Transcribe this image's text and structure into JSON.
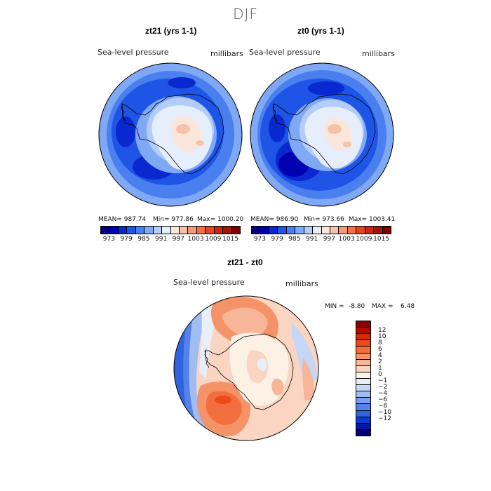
{
  "figure": {
    "title": "DJF"
  },
  "panels": [
    {
      "title": "zt21 (yrs 1-1)",
      "variable": "Sea-level pressure",
      "units": "millibars",
      "mean_label": "MEAN= 987.74",
      "min_label": "Min= 977.86",
      "max_label": "Max= 1000.20"
    },
    {
      "title": "zt0 (yrs 1-1)",
      "variable": "Sea-level pressure",
      "units": "millibars",
      "mean_label": "MEAN= 986.90",
      "min_label": "Min= 973.66",
      "max_label": "Max= 1003.41"
    }
  ],
  "colorbar_top": {
    "colors": [
      "#000080",
      "#0000b3",
      "#0a28d0",
      "#1e55e6",
      "#4a7ff0",
      "#7fa8f5",
      "#b4cdf8",
      "#e6eefb",
      "#fbe6dc",
      "#f7c3a8",
      "#f49a77",
      "#f07048",
      "#e4461f",
      "#c42a10",
      "#a01506",
      "#7a0000"
    ],
    "ticks": [
      "973",
      "979",
      "985",
      "991",
      "997",
      "1003",
      "1009",
      "1015"
    ]
  },
  "diff_panel": {
    "title": "zt21 - zt0",
    "variable": "Sea-level pressure",
    "units": "millibars",
    "min_label": "MIN =",
    "min_value": "-8.80",
    "max_label": "MAX =",
    "max_value": "6.48"
  },
  "colorbar_diff": {
    "colors": [
      "#8a0000",
      "#b30a00",
      "#d42a06",
      "#ee4a18",
      "#f36e3e",
      "#f59368",
      "#f7b697",
      "#fad5c2",
      "#fdf1e6",
      "#e8eefa",
      "#c5d6f6",
      "#a0bcf2",
      "#7a9ff0",
      "#5382ea",
      "#2f63e0",
      "#0a3ccf",
      "#0018a8",
      "#000070"
    ],
    "ticks": [
      "12",
      "10",
      "8",
      "6",
      "4",
      "2",
      "1",
      "0",
      "−1",
      "−2",
      "−4",
      "−6",
      "−8",
      "−10",
      "−12"
    ]
  }
}
